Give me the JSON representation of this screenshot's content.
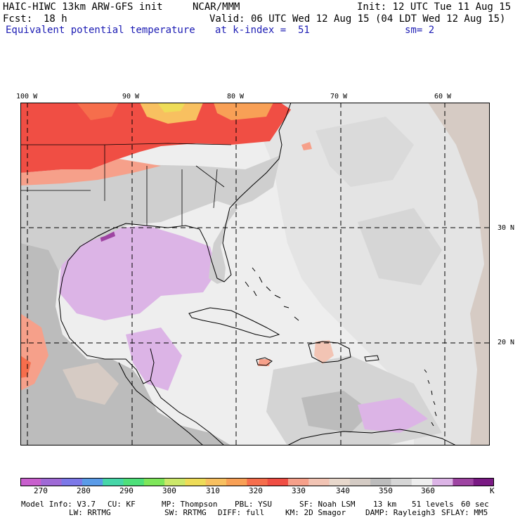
{
  "header": {
    "model_title": "HAIC-HIWC 13km ARW-GFS init",
    "institution": "NCAR/MMM",
    "init_time": "Init: 12 UTC Tue 11 Aug 15",
    "forecast_label": "Fcst:",
    "forecast_hours": "18 h",
    "valid_time": "Valid: 06 UTC Wed 12 Aug 15 (04 LDT Wed 12 Aug 15)",
    "field_name": "Equivalent potential temperature",
    "level": "at k-index =  51",
    "smoothing": "sm= 2"
  },
  "map": {
    "longitude_labels": [
      "100 W",
      "90 W",
      "80 W",
      "70 W",
      "60 W"
    ],
    "latitude_labels": [
      "30 N",
      "20 N"
    ],
    "longitude_values": [
      -100,
      -90,
      -80,
      -70,
      -60
    ],
    "latitude_values": [
      30,
      20
    ]
  },
  "colorbar": {
    "unit": "K",
    "tick_labels": [
      "270",
      "280",
      "290",
      "300",
      "310",
      "320",
      "330",
      "340",
      "350",
      "360"
    ],
    "colors": [
      "#c85fcd",
      "#9f6ad6",
      "#7c78e8",
      "#5a9be8",
      "#46d6a8",
      "#4ee07a",
      "#7ee65a",
      "#cce86a",
      "#eedc58",
      "#f8c060",
      "#f8a056",
      "#f66e4c",
      "#f04e44",
      "#f6a08a",
      "#f2c4b4",
      "#e8d8cc",
      "#d4cbc4",
      "#bcbcbc",
      "#d6d6d6",
      "#eeeeee",
      "#dcb4e6",
      "#9e44a2",
      "#7a1a84"
    ]
  },
  "model_info": {
    "line1": [
      "Model Info: V3.7",
      "CU: KF",
      "MP: Thompson",
      "PBL: YSU",
      "SF: Noah LSM",
      "13 km",
      "51 levels",
      "60 sec"
    ],
    "line2": [
      "LW: RRTMG",
      "SW: RRTMG",
      "DIFF: full",
      "KM: 2D Smagor",
      "DAMP: Rayleigh3",
      "SFLAY: MM5"
    ]
  },
  "field_colors": {
    "ocean_light": "#eeeeee",
    "gray_mid": "#d4d4d4",
    "gray_dark": "#bcbcbc",
    "tan": "#d6cbc4",
    "lavender": "#dcb4e6",
    "purple": "#9e44a2",
    "red": "#f04e44",
    "red_orange": "#f66e4c",
    "salmon": "#f6a08a",
    "orange": "#f8c060",
    "yellow": "#eedc58",
    "peach": "#f2c4b4"
  }
}
